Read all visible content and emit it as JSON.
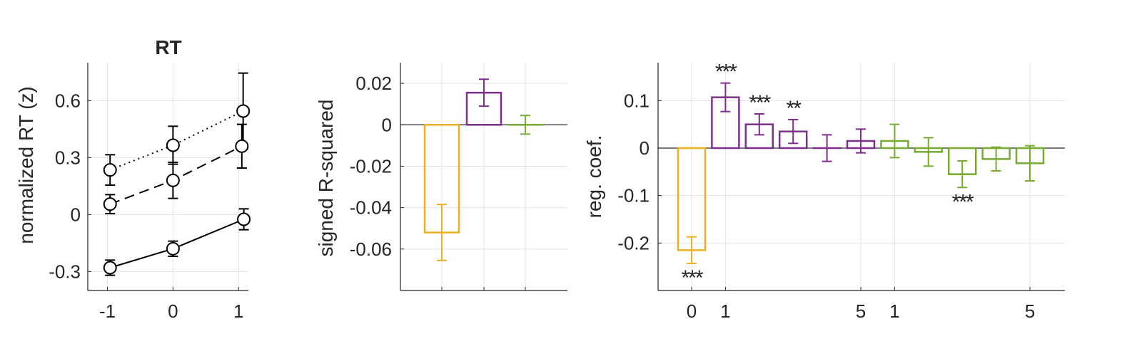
{
  "chart_data": [
    {
      "type": "line",
      "title": "RT",
      "xlabel": "",
      "ylabel": "normalized RT (z)",
      "xlim": [
        -1.3,
        1.15
      ],
      "ylim": [
        -0.4,
        0.8
      ],
      "x_ticks": [
        -1,
        0,
        1
      ],
      "x_tick_labels": [
        "-1",
        "0",
        "1"
      ],
      "y_ticks": [
        -0.3,
        0,
        0.3,
        0.6
      ],
      "y_tick_labels": [
        "-0.3",
        "0",
        "0.3",
        "0.6"
      ],
      "grid": true,
      "series": [
        {
          "style": "dotted",
          "x": [
            -1,
            0,
            1
          ],
          "y": [
            0.235,
            0.365,
            0.545
          ],
          "err": [
            0.08,
            0.1,
            0.2
          ]
        },
        {
          "style": "dashed",
          "x": [
            -1,
            0,
            1
          ],
          "y": [
            0.055,
            0.18,
            0.36
          ],
          "err": [
            0.05,
            0.095,
            0.115
          ]
        },
        {
          "style": "solid",
          "x": [
            -1,
            0,
            1
          ],
          "y": [
            -0.28,
            -0.18,
            -0.025
          ],
          "err": [
            0.04,
            0.04,
            0.055
          ]
        }
      ]
    },
    {
      "type": "bar",
      "title": "",
      "xlabel": "",
      "ylabel": "signed R-squared",
      "ylim": [
        -0.08,
        0.03
      ],
      "y_ticks": [
        -0.06,
        -0.04,
        -0.02,
        0,
        0.02
      ],
      "y_tick_labels": [
        "-0.06",
        "-0.04",
        "-0.02",
        "0",
        "0.02"
      ],
      "grid": true,
      "categories": [
        "",
        "",
        ""
      ],
      "values": [
        -0.052,
        0.0155,
        0.0
      ],
      "err": [
        0.0135,
        0.0065,
        0.0045
      ],
      "colors": [
        "#EDB120",
        "#7E2F8E",
        "#77AC30"
      ]
    },
    {
      "type": "bar",
      "title": "",
      "xlabel": "",
      "ylabel": "reg. coef.",
      "ylim": [
        -0.3,
        0.18
      ],
      "y_ticks": [
        -0.2,
        -0.1,
        0,
        0.1
      ],
      "y_tick_labels": [
        "-0.2",
        "-0.1",
        "0",
        "0.1"
      ],
      "x_tick_labels": [
        "0",
        "1",
        "5",
        "1",
        "5"
      ],
      "grid": true,
      "values": [
        -0.215,
        0.107,
        0.05,
        0.035,
        0.0,
        0.015,
        0.015,
        -0.008,
        -0.055,
        -0.023,
        -0.032
      ],
      "err": [
        0.028,
        0.03,
        0.022,
        0.025,
        0.028,
        0.025,
        0.035,
        0.03,
        0.028,
        0.025,
        0.037
      ],
      "colors": [
        "#EDB120",
        "#7E2F8E",
        "#7E2F8E",
        "#7E2F8E",
        "#7E2F8E",
        "#7E2F8E",
        "#77AC30",
        "#77AC30",
        "#77AC30",
        "#77AC30",
        "#77AC30"
      ],
      "significance": [
        "***",
        "***",
        "***",
        "**",
        "",
        "",
        "",
        "",
        "***",
        "",
        ""
      ]
    }
  ]
}
